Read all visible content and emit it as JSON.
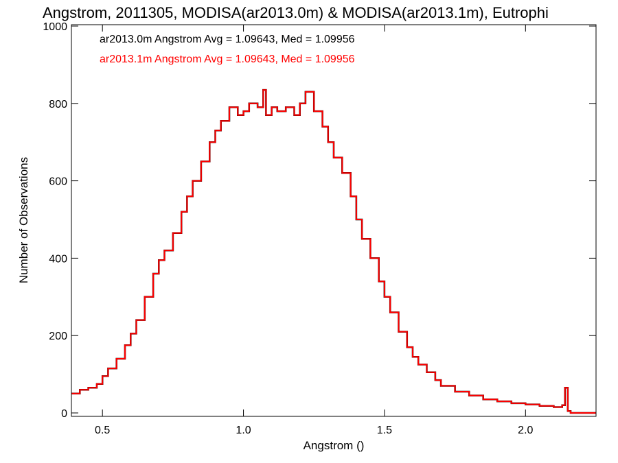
{
  "chart_data": {
    "type": "line",
    "title": "Angstrom, 2011305, MODISA(ar2013.0m) & MODISA(ar2013.1m), Eutrophi",
    "xlabel": "Angstrom ()",
    "ylabel": "Number of Observations",
    "xlim": [
      0.39,
      2.25
    ],
    "ylim": [
      0,
      1000
    ],
    "x_ticks": [
      0.5,
      1.0,
      1.5,
      2.0
    ],
    "x_tick_labels": [
      "0.5",
      "1.0",
      "1.5",
      "2.0"
    ],
    "y_ticks": [
      0,
      200,
      400,
      600,
      800,
      1000
    ],
    "y_tick_labels": [
      "0",
      "200",
      "400",
      "600",
      "800",
      "1000"
    ],
    "grid": false,
    "legend": {
      "placement": "top-left",
      "entries": [
        {
          "text": "ar2013.0m Angstrom Avg = 1.09643, Med = 1.09956",
          "color": "#000000"
        },
        {
          "text": "ar2013.1m Angstrom Avg = 1.09643, Med = 1.09956",
          "color": "#ff0000"
        }
      ]
    },
    "series": [
      {
        "name": "ar2013.0m",
        "color": "#000000",
        "step": true,
        "x": [
          0.39,
          0.42,
          0.45,
          0.48,
          0.5,
          0.52,
          0.55,
          0.58,
          0.6,
          0.62,
          0.65,
          0.68,
          0.7,
          0.72,
          0.75,
          0.78,
          0.8,
          0.82,
          0.85,
          0.88,
          0.9,
          0.92,
          0.95,
          0.98,
          1.0,
          1.02,
          1.05,
          1.07,
          1.08,
          1.1,
          1.12,
          1.15,
          1.18,
          1.2,
          1.22,
          1.25,
          1.28,
          1.3,
          1.32,
          1.35,
          1.38,
          1.4,
          1.42,
          1.45,
          1.48,
          1.5,
          1.52,
          1.55,
          1.58,
          1.6,
          1.62,
          1.65,
          1.68,
          1.7,
          1.75,
          1.8,
          1.85,
          1.9,
          1.95,
          2.0,
          2.05,
          2.1,
          2.13,
          2.14,
          2.15,
          2.16,
          2.18,
          2.2,
          2.25
        ],
        "values": [
          50,
          60,
          65,
          75,
          95,
          115,
          140,
          175,
          205,
          240,
          300,
          360,
          395,
          420,
          465,
          520,
          560,
          600,
          650,
          700,
          730,
          755,
          790,
          770,
          780,
          800,
          790,
          835,
          770,
          790,
          780,
          790,
          770,
          800,
          830,
          780,
          740,
          700,
          660,
          620,
          560,
          500,
          450,
          400,
          340,
          300,
          260,
          210,
          170,
          145,
          125,
          105,
          85,
          70,
          55,
          45,
          35,
          30,
          25,
          22,
          18,
          15,
          20,
          65,
          5,
          0,
          0,
          0,
          0
        ]
      },
      {
        "name": "ar2013.1m",
        "color": "#ff0000",
        "step": true,
        "x": [
          0.39,
          0.42,
          0.45,
          0.48,
          0.5,
          0.52,
          0.55,
          0.58,
          0.6,
          0.62,
          0.65,
          0.68,
          0.7,
          0.72,
          0.75,
          0.78,
          0.8,
          0.82,
          0.85,
          0.88,
          0.9,
          0.92,
          0.95,
          0.98,
          1.0,
          1.02,
          1.05,
          1.07,
          1.08,
          1.1,
          1.12,
          1.15,
          1.18,
          1.2,
          1.22,
          1.25,
          1.28,
          1.3,
          1.32,
          1.35,
          1.38,
          1.4,
          1.42,
          1.45,
          1.48,
          1.5,
          1.52,
          1.55,
          1.58,
          1.6,
          1.62,
          1.65,
          1.68,
          1.7,
          1.75,
          1.8,
          1.85,
          1.9,
          1.95,
          2.0,
          2.05,
          2.1,
          2.13,
          2.14,
          2.15,
          2.16,
          2.18,
          2.2,
          2.25
        ],
        "values": [
          50,
          60,
          65,
          75,
          95,
          115,
          140,
          175,
          205,
          240,
          300,
          360,
          395,
          420,
          465,
          520,
          560,
          600,
          650,
          700,
          730,
          755,
          790,
          770,
          780,
          800,
          790,
          835,
          770,
          790,
          780,
          790,
          770,
          800,
          830,
          780,
          740,
          700,
          660,
          620,
          560,
          500,
          450,
          400,
          340,
          300,
          260,
          210,
          170,
          145,
          125,
          105,
          85,
          70,
          55,
          45,
          35,
          30,
          25,
          22,
          18,
          15,
          20,
          65,
          5,
          0,
          0,
          0,
          0
        ]
      }
    ]
  }
}
